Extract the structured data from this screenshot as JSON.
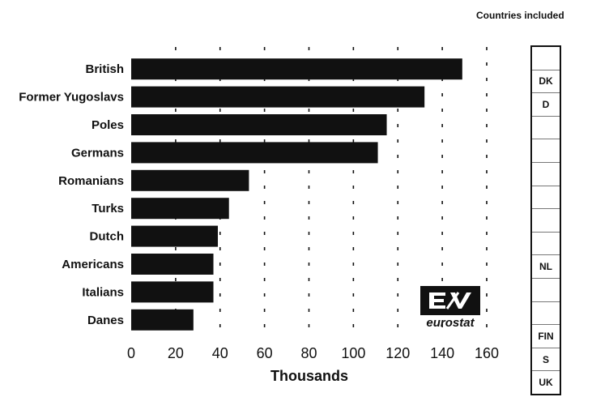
{
  "chart_data": {
    "type": "bar",
    "orientation": "horizontal",
    "categories": [
      "British",
      "Former Yugoslavs",
      "Poles",
      "Germans",
      "Romanians",
      "Turks",
      "Dutch",
      "Americans",
      "Italians",
      "Danes"
    ],
    "values": [
      149,
      132,
      115,
      111,
      53,
      44,
      39,
      37,
      37,
      28
    ],
    "xlabel": "Thousands",
    "xlim": [
      0,
      160
    ],
    "xticks": [
      0,
      20,
      40,
      60,
      80,
      100,
      120,
      140,
      160
    ],
    "grid": "dotted-vertical",
    "bar_color": "#111111"
  },
  "legend": {
    "title": "Countries included",
    "cells": [
      "",
      "DK",
      "D",
      "",
      "",
      "",
      "",
      "",
      "",
      "NL",
      "",
      "",
      "FIN",
      "S",
      "UK"
    ]
  },
  "logo": {
    "text": "eurostat"
  }
}
